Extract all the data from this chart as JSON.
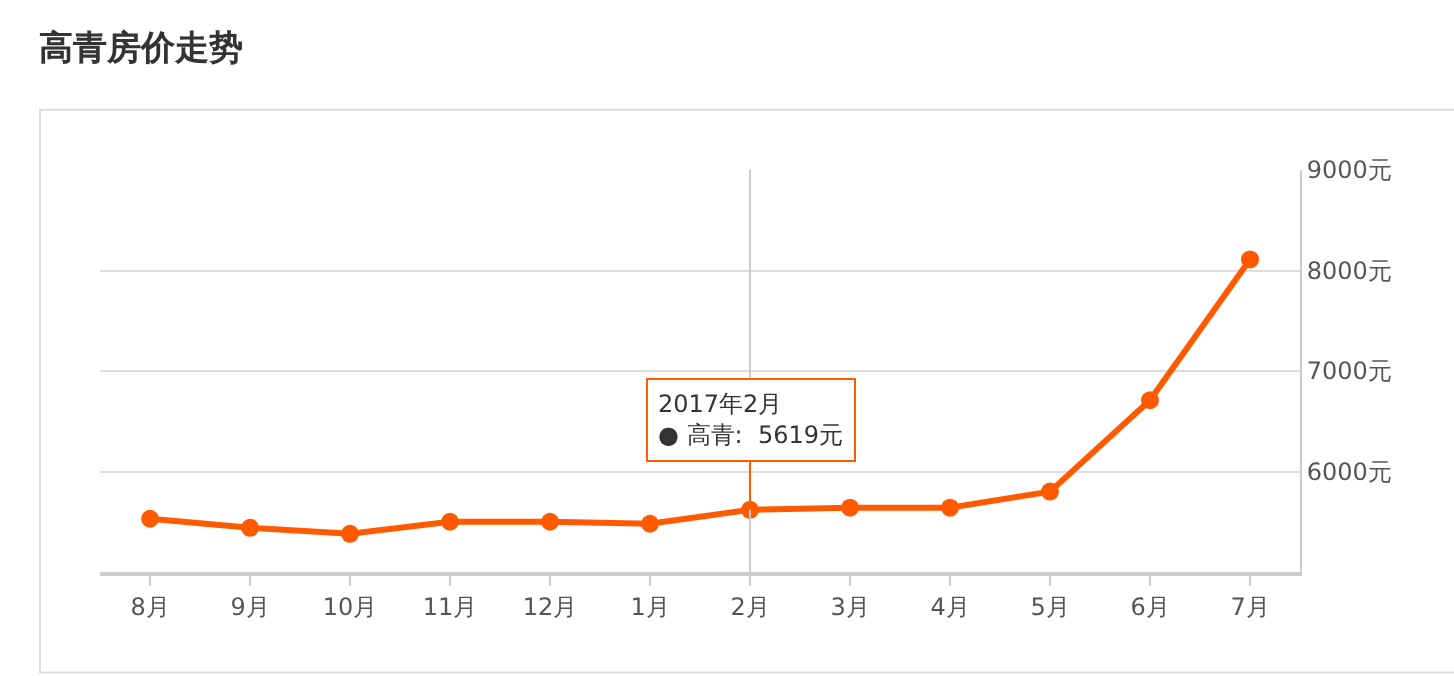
{
  "chart_data": {
    "type": "line",
    "title": "高青房价走势",
    "categories": [
      "8月",
      "9月",
      "10月",
      "11月",
      "12月",
      "1月",
      "2月",
      "3月",
      "4月",
      "5月",
      "6月",
      "7月"
    ],
    "series": [
      {
        "color": "#ff5a00",
        "values": [
          5530,
          5440,
          5380,
          5500,
          5500,
          5480,
          5619,
          5640,
          5640,
          5800,
          6710,
          8110
        ]
      }
    ],
    "ylim": [
      5000,
      9000
    ],
    "yticks": [
      {
        "value": 6000,
        "label": "6000元"
      },
      {
        "value": 7000,
        "label": "7000元"
      },
      {
        "value": 8000,
        "label": "8000元"
      },
      {
        "value": 9000,
        "label": "9000元"
      }
    ],
    "grid": "y",
    "marker": "circle",
    "line_style": "solid",
    "ref_lines": [
      {
        "axis": "x",
        "value": "2月",
        "color": "#cccccc"
      }
    ],
    "annotations": [
      {
        "text": "2017年2月\n● 高青:  5619元",
        "x": "2月",
        "y": 5619
      }
    ]
  }
}
